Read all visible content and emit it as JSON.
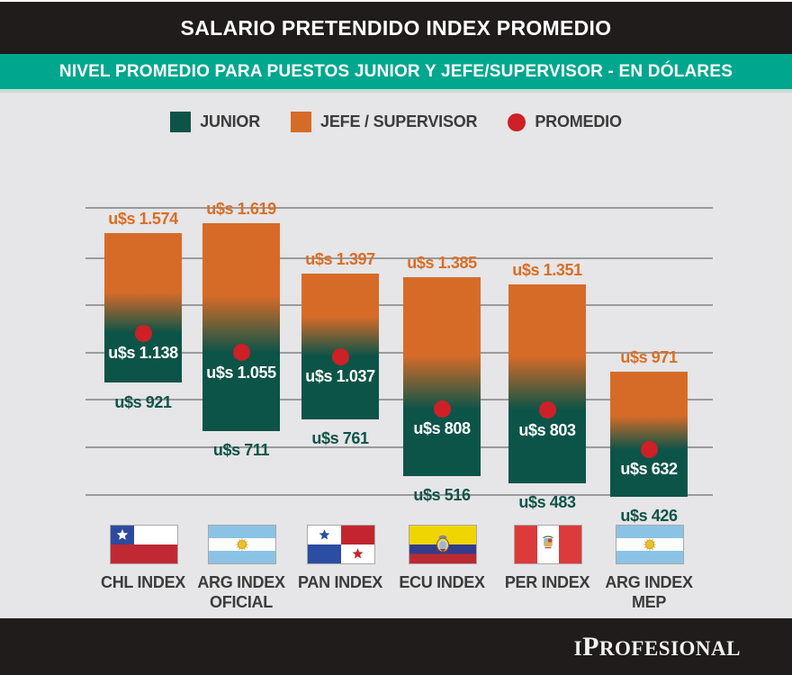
{
  "header": {
    "title": "SALARIO PRETENDIDO INDEX PROMEDIO"
  },
  "subheader": {
    "title": "NIVEL PROMEDIO PARA PUESTOS JUNIOR Y JEFE/SUPERVISOR - EN DÓLARES"
  },
  "legend": {
    "junior_label": "JUNIOR",
    "jefe_label": "JEFE / SUPERVISOR",
    "promedio_label": "PROMEDIO"
  },
  "colors": {
    "jefe_orange": "#D66B28",
    "junior_green": "#0D5448",
    "promedio_red": "#CD2027",
    "teal_banner": "#00A78E",
    "header_black": "#201C1C",
    "background_gray": "#E6E5E7",
    "orange_value_text": "#D96E26",
    "green_value_text": "#0E5449",
    "gridline_gray": "#9B9B9B",
    "country_label_gray": "#3B3B3B"
  },
  "chart_data": {
    "type": "bar",
    "subtype": "floating-range-bars-with-average-dot",
    "title": "SALARIO PRETENDIDO INDEX PROMEDIO",
    "subtitle": "NIVEL PROMEDIO PARA PUESTOS JUNIOR Y JEFE/SUPERVISOR - EN DÓLARES",
    "unit": "u$s",
    "categories": [
      "CHL INDEX",
      "ARG INDEX OFICIAL",
      "PAN INDEX",
      "ECU INDEX",
      "PER INDEX",
      "ARG INDEX MEP"
    ],
    "series": [
      {
        "name": "JEFE / SUPERVISOR",
        "role": "range_top",
        "color": "#D66B28",
        "values": [
          1574,
          1619,
          1397,
          1385,
          1351,
          971
        ]
      },
      {
        "name": "JUNIOR",
        "role": "range_bottom",
        "color": "#0D5448",
        "values": [
          921,
          711,
          761,
          516,
          483,
          426
        ]
      },
      {
        "name": "PROMEDIO",
        "role": "average_point",
        "color": "#CD2027",
        "values": [
          1138,
          1055,
          1037,
          808,
          803,
          632
        ]
      }
    ],
    "value_labels": {
      "jefe": [
        "u$s 1.574",
        "u$s 1.619",
        "u$s 1.397",
        "u$s 1.385",
        "u$s 1.351",
        "u$s 971"
      ],
      "promedio": [
        "u$s 1.138",
        "u$s 1.055",
        "u$s 1.037",
        "u$s 808",
        "u$s 803",
        "u$s 632"
      ],
      "junior": [
        "u$s 921",
        "u$s 711",
        "u$s 761",
        "u$s 516",
        "u$s 483",
        "u$s 426"
      ]
    },
    "ylim": [
      430,
      1700
    ],
    "grid": true,
    "legend_position": "top"
  },
  "columns": [
    {
      "label_lines": [
        "CHL INDEX"
      ],
      "flag": "chile-flag"
    },
    {
      "label_lines": [
        "ARG INDEX",
        "OFICIAL"
      ],
      "flag": "argentina-flag"
    },
    {
      "label_lines": [
        "PAN INDEX"
      ],
      "flag": "panama-flag"
    },
    {
      "label_lines": [
        "ECU INDEX"
      ],
      "flag": "ecuador-flag"
    },
    {
      "label_lines": [
        "PER INDEX"
      ],
      "flag": "peru-flag"
    },
    {
      "label_lines": [
        "ARG INDEX",
        "MEP"
      ],
      "flag": "argentina-flag"
    }
  ],
  "footer": {
    "logo_part1": "I",
    "logo_part2": "P",
    "logo_part3": "ROFESIONAL"
  }
}
